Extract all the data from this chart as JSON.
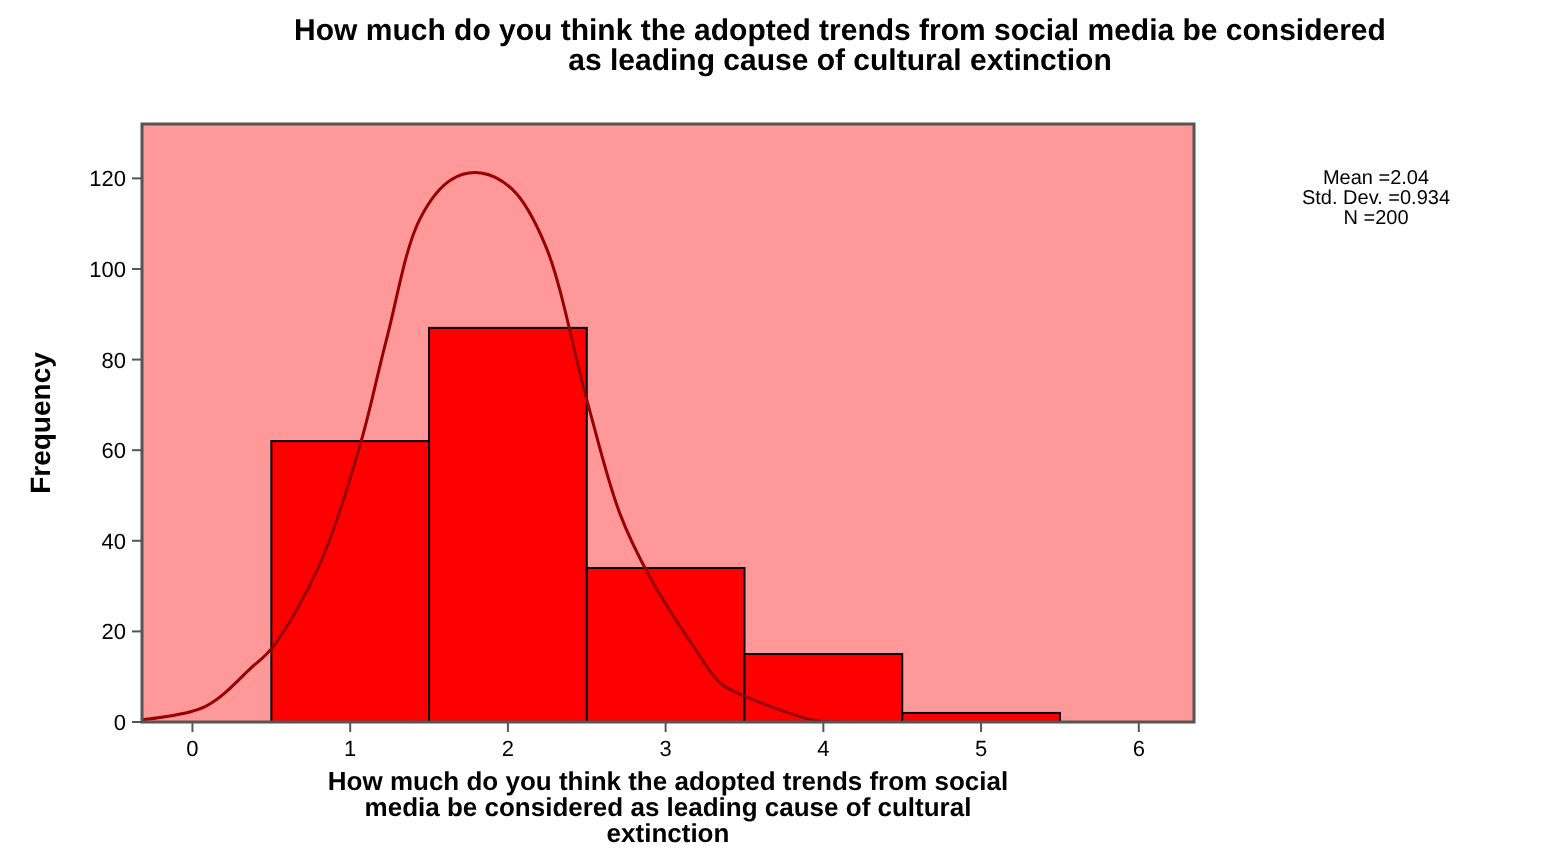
{
  "chart_data": {
    "type": "histogram",
    "title": "How much do you think the adopted trends from social media be considered as leading cause of cultural extinction",
    "xlabel": "How much do you think the adopted trends from social media be considered as leading cause of cultural extinction",
    "ylabel": "Frequency",
    "bins": [
      0.5,
      1.5,
      2.5,
      3.5,
      4.5,
      5.5
    ],
    "values": [
      62,
      87,
      34,
      15,
      2
    ],
    "color": "#ff0000",
    "series": [
      {
        "type": "line",
        "color": "#990000",
        "x": [
          -0.32,
          0.08,
          0.38,
          0.51,
          0.8,
          1.06,
          1.23,
          1.44,
          1.64,
          1.83,
          2.03,
          2.24,
          2.5,
          2.71,
          2.9,
          3.18,
          3.35,
          3.51,
          3.94,
          4.1
        ],
        "values": [
          0.5,
          3.4,
          12.2,
          16.6,
          34.3,
          60.8,
          84.4,
          110.9,
          119.7,
          121.2,
          117.5,
          105,
          71.1,
          46,
          32,
          16.5,
          8.5,
          5.6,
          0.4,
          0
        ]
      }
    ],
    "xlim": [
      -0.32,
      6.35
    ],
    "ylim": [
      0,
      132
    ],
    "xticks": [
      0,
      1,
      2,
      3,
      4,
      5,
      6
    ],
    "yticks": [
      0,
      20,
      40,
      60,
      80,
      100,
      120
    ],
    "grid": false,
    "marker": "none",
    "line_style": "solid",
    "annotations": [
      "Mean =2.04",
      "Std. Dev. =0.934",
      "N =200"
    ]
  }
}
